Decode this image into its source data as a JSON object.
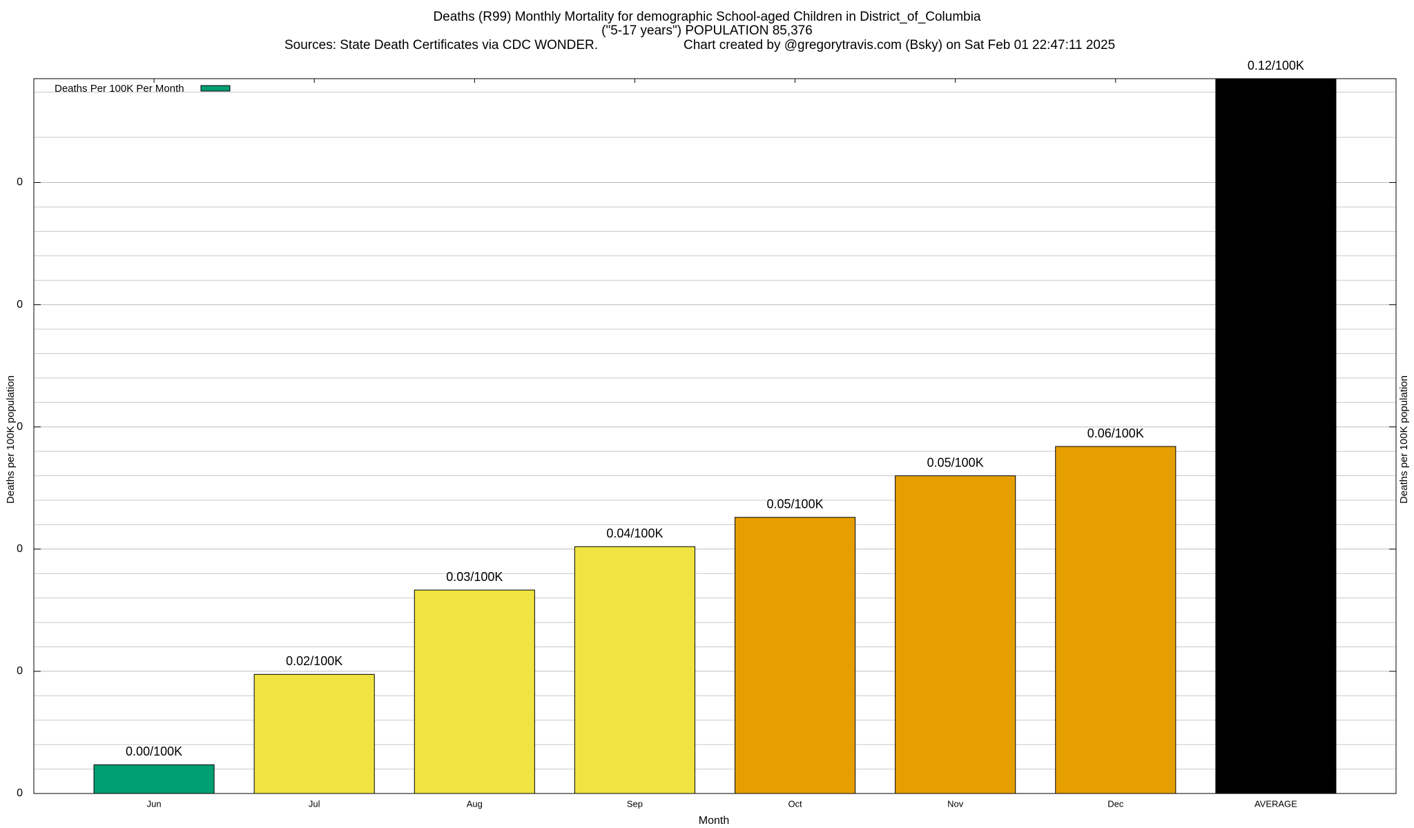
{
  "chart_data": {
    "type": "bar",
    "title": "Deaths (R99) Monthly Mortality for demographic School-aged Children in District_of_Columbia",
    "subtitle": "(\"5-17 years\") POPULATION 85,376",
    "source": "Sources: State Death Certificates via CDC WONDER.",
    "credit": "Chart created by @gregorytravis.com (Bsky) on Sat Feb 01 22:47:11 2025",
    "xlabel": "Month",
    "ylabel": "Deaths per 100K population",
    "categories": [
      "Jun",
      "Jul",
      "Aug",
      "Sep",
      "Oct",
      "Nov",
      "Dec",
      "AVERAGE"
    ],
    "series": [
      {
        "name": "Deaths Per 100K Per Month",
        "color": "#009e73",
        "values": [
          0.0047,
          0.0195,
          0.0333,
          0.0404,
          0.0452,
          0.052,
          0.0568,
          0.12
        ],
        "value_labels": [
          "0.00/100K",
          "0.02/100K",
          "0.03/100K",
          "0.04/100K",
          "0.05/100K",
          "0.05/100K",
          "0.06/100K",
          "0.12/100K"
        ],
        "colors": [
          "#009e73",
          "#f0e442",
          "#f0e442",
          "#f0e442",
          "#e69f00",
          "#e69f00",
          "#e69f00",
          "#000000"
        ]
      }
    ],
    "ylim": [
      0,
      0.117
    ],
    "yticks": [
      {
        "value": 0,
        "label": "0"
      },
      {
        "value": 0.02,
        "label": "0"
      },
      {
        "value": 0.04,
        "label": "0"
      },
      {
        "value": 0.06,
        "label": "0"
      },
      {
        "value": 0.08,
        "label": "0"
      },
      {
        "value": 0.1,
        "label": "0"
      }
    ],
    "yminor": 5,
    "grid": true,
    "legend": "top-left"
  }
}
